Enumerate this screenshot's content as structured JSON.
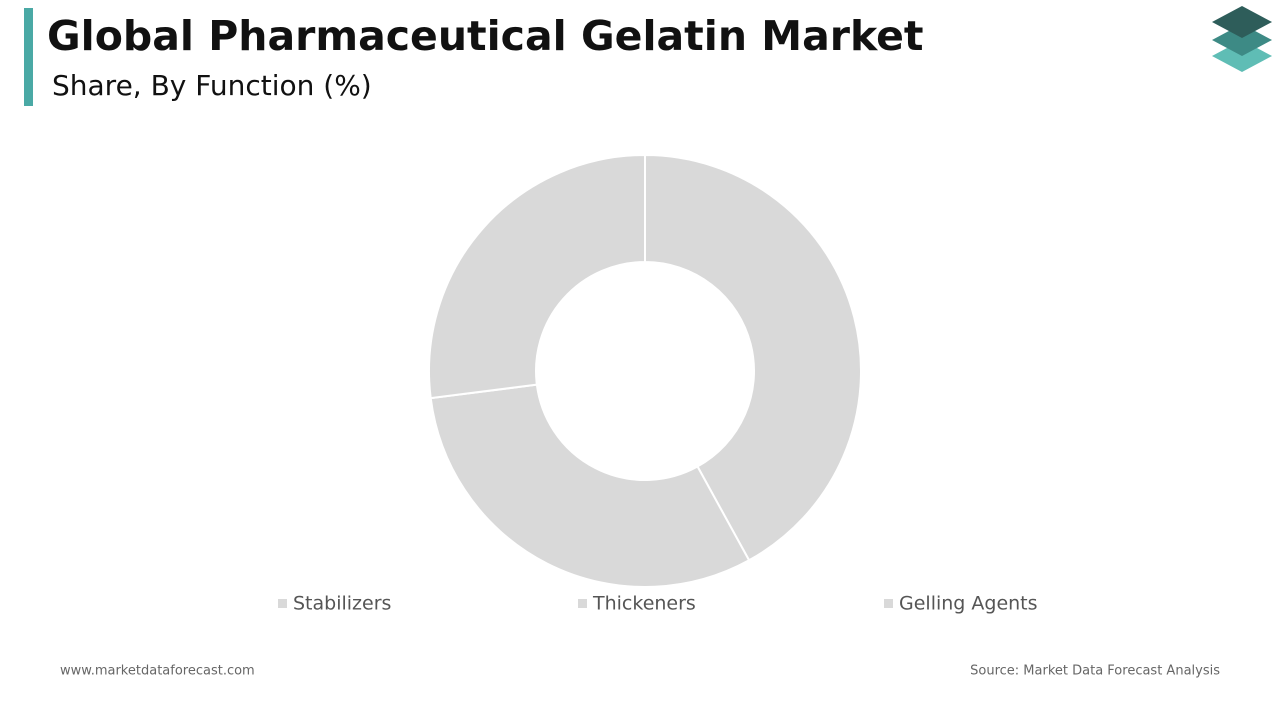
{
  "chart_data": {
    "type": "donut",
    "title": "Global Pharmaceutical Gelatin Market",
    "subtitle": "Share, By Function (%)",
    "categories": [
      "Stabilizers",
      "Thickeners",
      "Gelling Agents"
    ],
    "values": [
      42,
      31,
      27
    ],
    "colors": [
      "#d9d9d9",
      "#d9d9d9",
      "#d9d9d9"
    ]
  },
  "footer": {
    "website": "www.marketdataforecast.com",
    "source": "Source: Market Data Forecast Analysis"
  }
}
